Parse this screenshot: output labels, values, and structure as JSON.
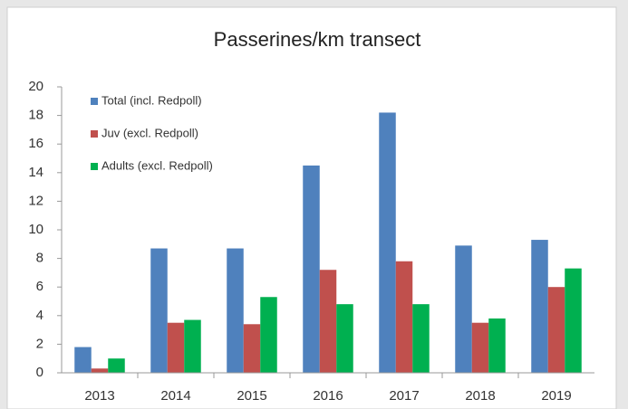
{
  "chart_data": {
    "type": "bar",
    "title": "Passerines/km transect",
    "categories": [
      "2013",
      "2014",
      "2015",
      "2016",
      "2017",
      "2018",
      "2019"
    ],
    "series": [
      {
        "name": "Total (incl. Redpoll)",
        "color": "#4f81bd",
        "values": [
          1.8,
          8.7,
          8.7,
          14.5,
          18.2,
          8.9,
          9.3
        ]
      },
      {
        "name": "Juv (excl. Redpoll)",
        "color": "#c0504d",
        "values": [
          0.3,
          3.5,
          3.4,
          7.2,
          7.8,
          3.5,
          6.0
        ]
      },
      {
        "name": "Adults (excl. Redpoll)",
        "color": "#00b050",
        "values": [
          1.0,
          3.7,
          5.3,
          4.8,
          4.8,
          3.8,
          7.3
        ]
      }
    ],
    "ylim": [
      0,
      20
    ],
    "yticks": [
      0,
      2,
      4,
      6,
      8,
      10,
      12,
      14,
      16,
      18,
      20
    ],
    "grid": false,
    "legend": "upper-left"
  }
}
